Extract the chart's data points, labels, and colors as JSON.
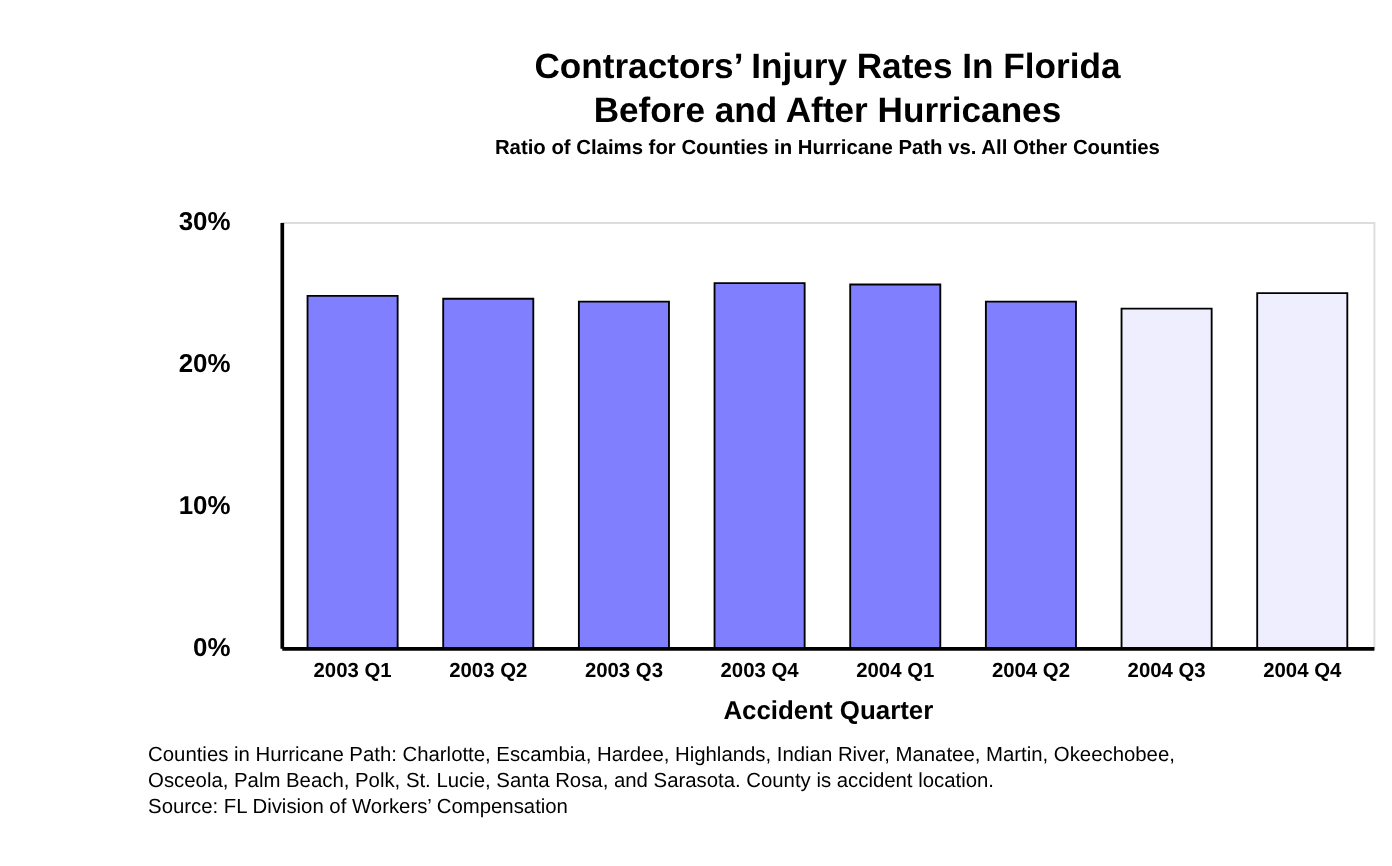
{
  "chart_data": {
    "type": "bar",
    "title": [
      "Contractors’ Injury Rates In Florida",
      "Before and After Hurricanes"
    ],
    "subtitle": "Ratio of Claims for Counties in Hurricane Path vs. All Other Counties",
    "xlabel": "Accident Quarter",
    "categories": [
      "2003 Q1",
      "2003 Q2",
      "2003 Q3",
      "2003 Q4",
      "2004 Q1",
      "2004 Q2",
      "2004 Q3",
      "2004 Q4"
    ],
    "values": [
      24.8,
      24.6,
      24.4,
      25.7,
      25.6,
      24.4,
      23.9,
      25.0
    ],
    "colors": [
      "#8080ff",
      "#8080ff",
      "#8080ff",
      "#8080ff",
      "#8080ff",
      "#8080ff",
      "#eeeeff",
      "#eeeeff"
    ],
    "ylim": [
      0,
      30
    ],
    "yticks": [
      {
        "value": 0,
        "label": "0%"
      },
      {
        "value": 10,
        "label": "10%"
      },
      {
        "value": 20,
        "label": "20%"
      },
      {
        "value": 30,
        "label": "30%"
      }
    ],
    "grid": false,
    "annotations": [
      "Counties in Hurricane Path: Charlotte, Escambia, Hardee, Highlands, Indian River, Manatee, Martin, Okeechobee, Osceola, Palm Beach, Polk, St. Lucie, Santa Rosa, and Sarasota.  County is accident location.",
      "Source: FL Division of Workers’ Compensation"
    ]
  }
}
